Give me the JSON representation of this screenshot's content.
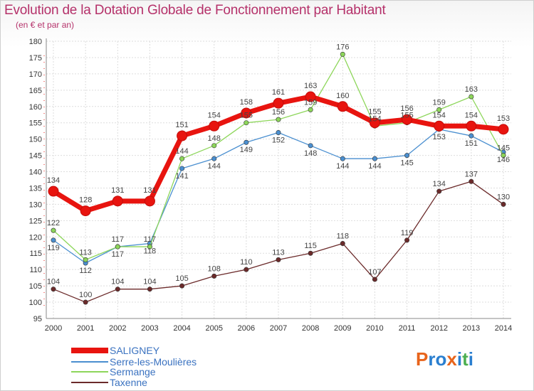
{
  "header": {
    "title": "Evolution de la Dotation Globale de Fonctionnement par Habitant",
    "subtitle": "(en € et par an)"
  },
  "logo": {
    "letters": [
      "P",
      "r",
      "o",
      "x",
      "i",
      "t",
      "i"
    ],
    "colors": [
      "#e8641b",
      "#2a7fd0",
      "#2a7fd0",
      "#e8641b",
      "#2a7fd0",
      "#4caf50",
      "#2a7fd0"
    ]
  },
  "chart_data": {
    "type": "line",
    "title": "Evolution de la Dotation Globale de Fonctionnement par Habitant",
    "subtitle": "(en € et par an)",
    "xlabel": "",
    "ylabel": "",
    "ylim": [
      95,
      180
    ],
    "y_ticks": [
      95,
      100,
      105,
      110,
      115,
      120,
      125,
      130,
      135,
      140,
      145,
      150,
      155,
      160,
      165,
      170,
      175,
      180
    ],
    "x": [
      "2000",
      "2001",
      "2002",
      "2003",
      "2004",
      "2005",
      "2006",
      "2007",
      "2008",
      "2009",
      "2010",
      "2011",
      "2012",
      "2013",
      "2014"
    ],
    "grid": true,
    "legend_position": "bottom-left",
    "series": [
      {
        "name": "Serre-les-Moulières",
        "color": "#4a8fd0",
        "values": [
          119,
          112,
          117,
          118,
          141,
          144,
          149,
          152,
          148,
          144,
          144,
          145,
          153,
          151,
          146
        ]
      },
      {
        "name": "Sermange",
        "color": "#8dd65a",
        "values": [
          122,
          113,
          117,
          117,
          144,
          148,
          155,
          156,
          159,
          176,
          154,
          155,
          159,
          163,
          145
        ]
      },
      {
        "name": "Taxenne",
        "color": "#6b2a2a",
        "values": [
          104,
          100,
          104,
          104,
          105,
          108,
          110,
          113,
          115,
          118,
          107,
          119,
          134,
          137,
          130
        ]
      },
      {
        "name": "SALIGNEY",
        "color": "#e8140f",
        "values": [
          134,
          128,
          131,
          131,
          151,
          154,
          158,
          161,
          163,
          160,
          155,
          156,
          154,
          154,
          153
        ]
      }
    ],
    "legend_order": [
      "SALIGNEY",
      "Serre-les-Moulières",
      "Sermange",
      "Taxenne"
    ]
  }
}
